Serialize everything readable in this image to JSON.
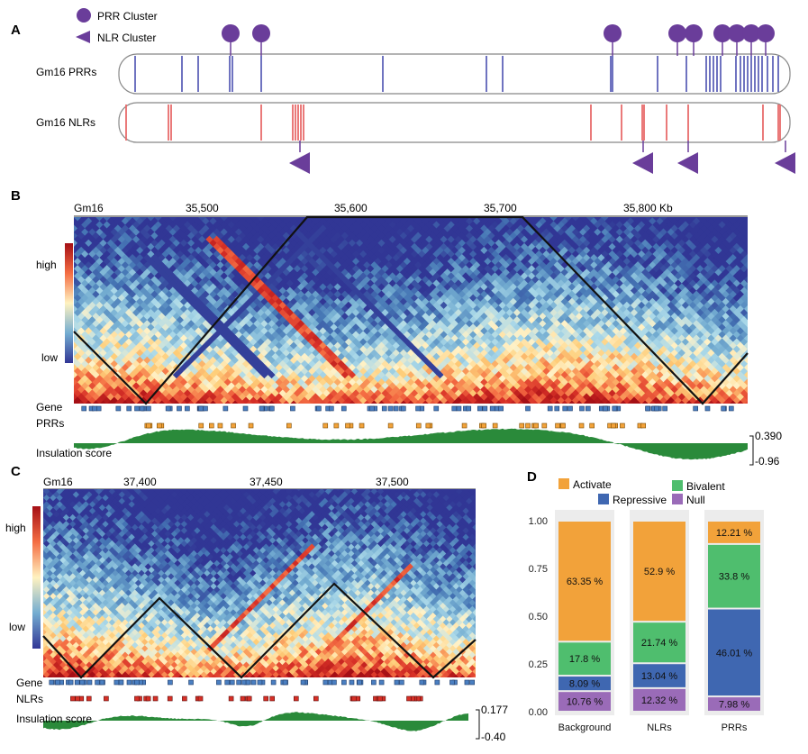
{
  "panels": {
    "a": "A",
    "b": "B",
    "c": "C",
    "d": "D"
  },
  "panel_a": {
    "legend": {
      "prr": "PRR Cluster",
      "nlr": "NLR Cluster"
    },
    "tracks": {
      "prr": "Gm16 PRRs",
      "nlr": "Gm16 NLRs"
    },
    "colors": {
      "prr": "#6f73c0",
      "nlr": "#e86b6b",
      "cluster": "#6a3d9a"
    }
  },
  "panel_b": {
    "chrom": "Gm16",
    "ticks": [
      "35,500",
      "35,600",
      "35,700",
      "35,800 Kb"
    ],
    "scale": {
      "high": "high",
      "low": "low"
    },
    "rows": {
      "gene": "Gene",
      "genes2": "PRRs",
      "insulation": "Insulation score"
    },
    "insulation_range": {
      "max": "0.390",
      "min": "-0.96"
    }
  },
  "panel_c": {
    "chrom": "Gm16",
    "ticks": [
      "37,400",
      "37,450",
      "37,500"
    ],
    "scale": {
      "high": "high",
      "low": "low"
    },
    "rows": {
      "gene": "Gene",
      "genes2": "NLRs",
      "insulation": "Insulation score"
    },
    "insulation_range": {
      "max": "0.177",
      "min": "-0.40"
    }
  },
  "chart_data": {
    "type": "bar",
    "subtype": "stacked-100",
    "categories": [
      "Background",
      "NLRs",
      "PRRs"
    ],
    "yticks": [
      "0.00",
      "0.25",
      "0.50",
      "0.75",
      "1.00"
    ],
    "ylim": [
      0,
      1
    ],
    "legend": [
      "Activate",
      "Bivalent",
      "Repressive",
      "Null"
    ],
    "colors": {
      "Activate": "#f2a23a",
      "Bivalent": "#4fbe6e",
      "Repressive": "#3f67b1",
      "Null": "#9a6bb8"
    },
    "series": [
      {
        "name": "Null",
        "values": [
          10.76,
          12.32,
          7.98
        ],
        "labels": [
          "10.76 %",
          "12.32 %",
          "7.98 %"
        ]
      },
      {
        "name": "Repressive",
        "values": [
          8.09,
          13.04,
          46.01
        ],
        "labels": [
          "8.09 %",
          "13.04 %",
          "46.01 %"
        ]
      },
      {
        "name": "Bivalent",
        "values": [
          17.8,
          21.74,
          33.8
        ],
        "labels": [
          "17.8 %",
          "21.74 %",
          "33.8 %"
        ]
      },
      {
        "name": "Activate",
        "values": [
          63.35,
          52.9,
          12.21
        ],
        "labels": [
          "63.35 %",
          "52.9 %",
          "12.21 %"
        ]
      }
    ]
  }
}
